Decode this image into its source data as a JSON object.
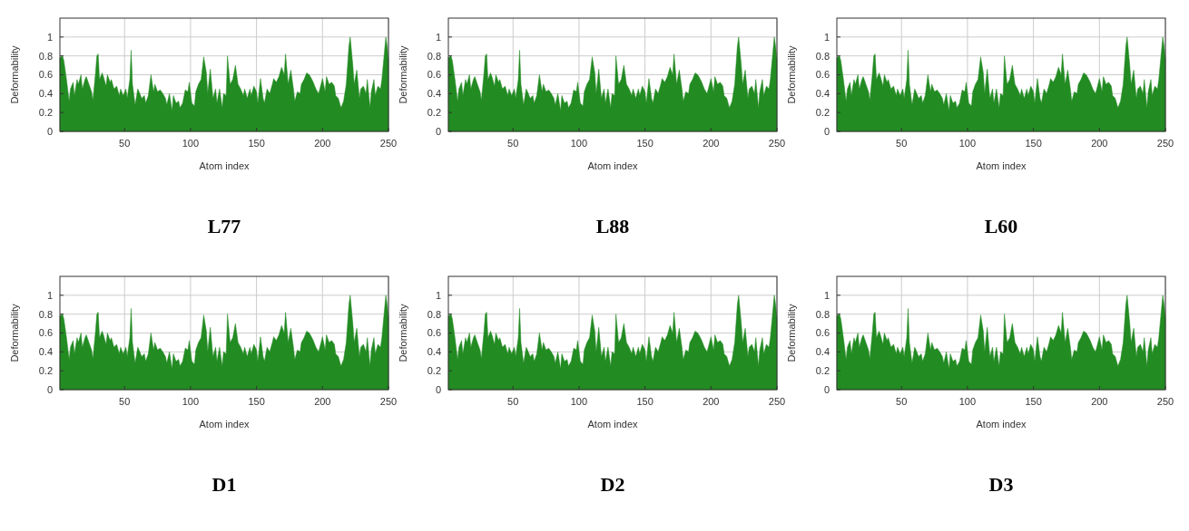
{
  "chart_data": [
    {
      "type": "area",
      "title": "L77",
      "xlabel": "Atom index",
      "ylabel": "Deformability",
      "xlim": [
        1,
        250
      ],
      "ylim": [
        0,
        1.2
      ],
      "xticks": [
        50,
        100,
        150,
        200,
        250
      ],
      "yticks": [
        0,
        0.2,
        0.4,
        0.6,
        0.8,
        1
      ],
      "grid": true,
      "series": [
        {
          "color": "#228b22",
          "x": [
            1,
            3,
            4,
            6,
            8,
            9,
            11,
            12,
            14,
            15,
            17,
            18,
            20,
            21,
            23,
            25,
            26,
            28,
            29,
            30,
            31,
            33,
            34,
            36,
            37,
            39,
            40,
            42,
            44,
            46,
            47,
            49,
            51,
            52,
            54,
            55,
            56,
            58,
            60,
            61,
            63,
            65,
            66,
            68,
            70,
            72,
            73,
            75,
            77,
            79,
            81,
            82,
            84,
            86,
            87,
            89,
            91,
            92,
            94,
            96,
            98,
            99,
            101,
            103,
            104,
            106,
            108,
            110,
            112,
            113,
            115,
            117,
            119,
            120,
            122,
            124,
            125,
            127,
            128,
            130,
            132,
            134,
            136,
            138,
            140,
            141,
            143,
            145,
            146,
            148,
            150,
            151,
            153,
            155,
            156,
            158,
            160,
            162,
            163,
            165,
            167,
            169,
            171,
            172,
            174,
            176,
            178,
            179,
            181,
            183,
            184,
            186,
            188,
            190,
            192,
            193,
            195,
            197,
            198,
            200,
            202,
            203,
            205,
            207,
            209,
            210,
            212,
            214,
            216,
            218,
            220,
            221,
            223,
            224,
            226,
            228,
            229,
            231,
            233,
            234,
            236,
            237,
            239,
            240,
            242,
            244,
            245,
            247,
            248,
            249,
            250
          ],
          "values": [
            0.78,
            0.8,
            0.75,
            0.55,
            0.32,
            0.45,
            0.52,
            0.38,
            0.55,
            0.5,
            0.6,
            0.45,
            0.55,
            0.58,
            0.5,
            0.42,
            0.33,
            0.62,
            0.8,
            0.82,
            0.55,
            0.62,
            0.58,
            0.48,
            0.6,
            0.52,
            0.55,
            0.45,
            0.48,
            0.38,
            0.45,
            0.38,
            0.45,
            0.35,
            0.55,
            0.86,
            0.5,
            0.28,
            0.45,
            0.42,
            0.35,
            0.38,
            0.3,
            0.38,
            0.6,
            0.42,
            0.5,
            0.42,
            0.44,
            0.4,
            0.35,
            0.28,
            0.4,
            0.22,
            0.38,
            0.3,
            0.32,
            0.25,
            0.3,
            0.44,
            0.42,
            0.52,
            0.3,
            0.27,
            0.42,
            0.5,
            0.55,
            0.79,
            0.62,
            0.4,
            0.66,
            0.35,
            0.45,
            0.3,
            0.45,
            0.25,
            0.4,
            0.38,
            0.8,
            0.5,
            0.55,
            0.7,
            0.5,
            0.45,
            0.38,
            0.45,
            0.35,
            0.45,
            0.38,
            0.48,
            0.42,
            0.3,
            0.56,
            0.35,
            0.3,
            0.45,
            0.4,
            0.5,
            0.56,
            0.52,
            0.58,
            0.68,
            0.6,
            0.82,
            0.5,
            0.65,
            0.45,
            0.32,
            0.42,
            0.4,
            0.5,
            0.55,
            0.62,
            0.6,
            0.55,
            0.52,
            0.45,
            0.4,
            0.45,
            0.56,
            0.42,
            0.58,
            0.5,
            0.52,
            0.48,
            0.38,
            0.35,
            0.25,
            0.32,
            0.5,
            0.9,
            1.0,
            0.7,
            0.5,
            0.65,
            0.35,
            0.45,
            0.48,
            0.4,
            0.55,
            0.25,
            0.42,
            0.55,
            0.38,
            0.48,
            0.45,
            0.55,
            0.85,
            1.0,
            0.9,
            0.76
          ]
        }
      ]
    },
    {
      "type": "area",
      "title": "L88",
      "xlabel": "Atom index",
      "ylabel": "Deformability",
      "xlim": [
        1,
        250
      ],
      "ylim": [
        0,
        1.2
      ],
      "xticks": [
        50,
        100,
        150,
        200,
        250
      ],
      "yticks": [
        0,
        0.2,
        0.4,
        0.6,
        0.8,
        1
      ],
      "grid": true,
      "series": [
        {
          "color": "#228b22",
          "x": [
            1,
            3,
            4,
            6,
            8,
            9,
            11,
            12,
            14,
            15,
            17,
            18,
            20,
            21,
            23,
            25,
            26,
            28,
            29,
            30,
            31,
            33,
            34,
            36,
            37,
            39,
            40,
            42,
            44,
            46,
            47,
            49,
            51,
            52,
            54,
            55,
            56,
            58,
            60,
            61,
            63,
            65,
            66,
            68,
            70,
            72,
            73,
            75,
            77,
            79,
            81,
            82,
            84,
            86,
            87,
            89,
            91,
            92,
            94,
            96,
            98,
            99,
            101,
            103,
            104,
            106,
            108,
            110,
            112,
            113,
            115,
            117,
            119,
            120,
            122,
            124,
            125,
            127,
            128,
            130,
            132,
            134,
            136,
            138,
            140,
            141,
            143,
            145,
            146,
            148,
            150,
            151,
            153,
            155,
            156,
            158,
            160,
            162,
            163,
            165,
            167,
            169,
            171,
            172,
            174,
            176,
            178,
            179,
            181,
            183,
            184,
            186,
            188,
            190,
            192,
            193,
            195,
            197,
            198,
            200,
            202,
            203,
            205,
            207,
            209,
            210,
            212,
            214,
            216,
            218,
            220,
            221,
            223,
            224,
            226,
            228,
            229,
            231,
            233,
            234,
            236,
            237,
            239,
            240,
            242,
            244,
            245,
            247,
            248,
            249,
            250
          ],
          "values": [
            0.78,
            0.8,
            0.75,
            0.55,
            0.32,
            0.45,
            0.52,
            0.38,
            0.55,
            0.5,
            0.6,
            0.45,
            0.55,
            0.58,
            0.5,
            0.42,
            0.33,
            0.62,
            0.8,
            0.82,
            0.55,
            0.62,
            0.58,
            0.48,
            0.6,
            0.52,
            0.55,
            0.45,
            0.48,
            0.38,
            0.45,
            0.38,
            0.45,
            0.35,
            0.55,
            0.86,
            0.5,
            0.28,
            0.45,
            0.42,
            0.35,
            0.38,
            0.3,
            0.38,
            0.6,
            0.42,
            0.5,
            0.42,
            0.44,
            0.4,
            0.35,
            0.28,
            0.4,
            0.22,
            0.38,
            0.3,
            0.32,
            0.25,
            0.3,
            0.44,
            0.42,
            0.52,
            0.3,
            0.27,
            0.42,
            0.5,
            0.55,
            0.79,
            0.62,
            0.4,
            0.66,
            0.35,
            0.45,
            0.3,
            0.45,
            0.25,
            0.4,
            0.38,
            0.8,
            0.5,
            0.55,
            0.7,
            0.5,
            0.45,
            0.38,
            0.45,
            0.35,
            0.45,
            0.38,
            0.48,
            0.42,
            0.3,
            0.56,
            0.35,
            0.3,
            0.45,
            0.4,
            0.5,
            0.56,
            0.52,
            0.58,
            0.68,
            0.6,
            0.82,
            0.5,
            0.65,
            0.45,
            0.32,
            0.42,
            0.4,
            0.5,
            0.55,
            0.62,
            0.6,
            0.55,
            0.52,
            0.45,
            0.4,
            0.45,
            0.56,
            0.42,
            0.58,
            0.5,
            0.52,
            0.48,
            0.38,
            0.35,
            0.25,
            0.32,
            0.5,
            0.9,
            1.0,
            0.7,
            0.5,
            0.65,
            0.35,
            0.45,
            0.48,
            0.4,
            0.55,
            0.25,
            0.42,
            0.55,
            0.38,
            0.48,
            0.45,
            0.55,
            0.85,
            1.0,
            0.9,
            0.76
          ]
        }
      ]
    },
    {
      "type": "area",
      "title": "L60",
      "xlabel": "Atom index",
      "ylabel": "Deformability",
      "xlim": [
        1,
        250
      ],
      "ylim": [
        0,
        1.2
      ],
      "xticks": [
        50,
        100,
        150,
        200,
        250
      ],
      "yticks": [
        0,
        0.2,
        0.4,
        0.6,
        0.8,
        1
      ],
      "grid": true,
      "series": [
        {
          "color": "#228b22",
          "x": [
            1,
            3,
            4,
            6,
            8,
            9,
            11,
            12,
            14,
            15,
            17,
            18,
            20,
            21,
            23,
            25,
            26,
            28,
            29,
            30,
            31,
            33,
            34,
            36,
            37,
            39,
            40,
            42,
            44,
            46,
            47,
            49,
            51,
            52,
            54,
            55,
            56,
            58,
            60,
            61,
            63,
            65,
            66,
            68,
            70,
            72,
            73,
            75,
            77,
            79,
            81,
            82,
            84,
            86,
            87,
            89,
            91,
            92,
            94,
            96,
            98,
            99,
            101,
            103,
            104,
            106,
            108,
            110,
            112,
            113,
            115,
            117,
            119,
            120,
            122,
            124,
            125,
            127,
            128,
            130,
            132,
            134,
            136,
            138,
            140,
            141,
            143,
            145,
            146,
            148,
            150,
            151,
            153,
            155,
            156,
            158,
            160,
            162,
            163,
            165,
            167,
            169,
            171,
            172,
            174,
            176,
            178,
            179,
            181,
            183,
            184,
            186,
            188,
            190,
            192,
            193,
            195,
            197,
            198,
            200,
            202,
            203,
            205,
            207,
            209,
            210,
            212,
            214,
            216,
            218,
            220,
            221,
            223,
            224,
            226,
            228,
            229,
            231,
            233,
            234,
            236,
            237,
            239,
            240,
            242,
            244,
            245,
            247,
            248,
            249,
            250
          ],
          "values": [
            0.78,
            0.8,
            0.75,
            0.55,
            0.32,
            0.45,
            0.52,
            0.38,
            0.55,
            0.5,
            0.6,
            0.45,
            0.55,
            0.58,
            0.5,
            0.42,
            0.33,
            0.62,
            0.8,
            0.82,
            0.55,
            0.62,
            0.58,
            0.48,
            0.6,
            0.52,
            0.55,
            0.45,
            0.48,
            0.38,
            0.45,
            0.38,
            0.45,
            0.35,
            0.55,
            0.86,
            0.5,
            0.28,
            0.45,
            0.42,
            0.35,
            0.38,
            0.3,
            0.38,
            0.6,
            0.42,
            0.5,
            0.42,
            0.44,
            0.4,
            0.35,
            0.28,
            0.4,
            0.22,
            0.38,
            0.3,
            0.32,
            0.25,
            0.3,
            0.44,
            0.42,
            0.52,
            0.3,
            0.27,
            0.42,
            0.5,
            0.55,
            0.79,
            0.62,
            0.4,
            0.66,
            0.35,
            0.45,
            0.3,
            0.45,
            0.25,
            0.4,
            0.38,
            0.8,
            0.5,
            0.55,
            0.7,
            0.5,
            0.45,
            0.38,
            0.45,
            0.35,
            0.45,
            0.38,
            0.48,
            0.42,
            0.3,
            0.56,
            0.35,
            0.3,
            0.45,
            0.4,
            0.5,
            0.56,
            0.52,
            0.58,
            0.68,
            0.6,
            0.82,
            0.5,
            0.65,
            0.45,
            0.32,
            0.42,
            0.4,
            0.5,
            0.55,
            0.62,
            0.6,
            0.55,
            0.52,
            0.45,
            0.4,
            0.45,
            0.56,
            0.42,
            0.58,
            0.5,
            0.52,
            0.48,
            0.38,
            0.35,
            0.25,
            0.32,
            0.5,
            0.9,
            1.0,
            0.7,
            0.5,
            0.65,
            0.35,
            0.45,
            0.48,
            0.4,
            0.55,
            0.25,
            0.42,
            0.55,
            0.38,
            0.48,
            0.45,
            0.55,
            0.85,
            1.0,
            0.9,
            0.76
          ]
        }
      ]
    },
    {
      "type": "area",
      "title": "D1",
      "xlabel": "Atom index",
      "ylabel": "Deformability",
      "xlim": [
        1,
        250
      ],
      "ylim": [
        0,
        1.2
      ],
      "xticks": [
        50,
        100,
        150,
        200,
        250
      ],
      "yticks": [
        0,
        0.2,
        0.4,
        0.6,
        0.8,
        1
      ],
      "grid": true,
      "series": [
        {
          "color": "#228b22",
          "x": [
            1,
            3,
            4,
            6,
            8,
            9,
            11,
            12,
            14,
            15,
            17,
            18,
            20,
            21,
            23,
            25,
            26,
            28,
            29,
            30,
            31,
            33,
            34,
            36,
            37,
            39,
            40,
            42,
            44,
            46,
            47,
            49,
            51,
            52,
            54,
            55,
            56,
            58,
            60,
            61,
            63,
            65,
            66,
            68,
            70,
            72,
            73,
            75,
            77,
            79,
            81,
            82,
            84,
            86,
            87,
            89,
            91,
            92,
            94,
            96,
            98,
            99,
            101,
            103,
            104,
            106,
            108,
            110,
            112,
            113,
            115,
            117,
            119,
            120,
            122,
            124,
            125,
            127,
            128,
            130,
            132,
            134,
            136,
            138,
            140,
            141,
            143,
            145,
            146,
            148,
            150,
            151,
            153,
            155,
            156,
            158,
            160,
            162,
            163,
            165,
            167,
            169,
            171,
            172,
            174,
            176,
            178,
            179,
            181,
            183,
            184,
            186,
            188,
            190,
            192,
            193,
            195,
            197,
            198,
            200,
            202,
            203,
            205,
            207,
            209,
            210,
            212,
            214,
            216,
            218,
            220,
            221,
            223,
            224,
            226,
            228,
            229,
            231,
            233,
            234,
            236,
            237,
            239,
            240,
            242,
            244,
            245,
            247,
            248,
            249,
            250
          ],
          "values": [
            0.78,
            0.8,
            0.75,
            0.55,
            0.32,
            0.45,
            0.52,
            0.38,
            0.55,
            0.5,
            0.6,
            0.45,
            0.55,
            0.58,
            0.5,
            0.42,
            0.33,
            0.62,
            0.8,
            0.82,
            0.55,
            0.62,
            0.58,
            0.48,
            0.6,
            0.52,
            0.55,
            0.45,
            0.48,
            0.38,
            0.45,
            0.38,
            0.45,
            0.35,
            0.55,
            0.86,
            0.5,
            0.28,
            0.45,
            0.42,
            0.35,
            0.38,
            0.3,
            0.38,
            0.6,
            0.42,
            0.5,
            0.42,
            0.44,
            0.4,
            0.35,
            0.28,
            0.4,
            0.22,
            0.38,
            0.3,
            0.32,
            0.25,
            0.3,
            0.44,
            0.42,
            0.52,
            0.3,
            0.27,
            0.42,
            0.5,
            0.55,
            0.79,
            0.62,
            0.4,
            0.66,
            0.35,
            0.45,
            0.3,
            0.45,
            0.25,
            0.4,
            0.38,
            0.8,
            0.5,
            0.55,
            0.7,
            0.5,
            0.45,
            0.38,
            0.45,
            0.35,
            0.45,
            0.38,
            0.48,
            0.42,
            0.3,
            0.56,
            0.35,
            0.3,
            0.45,
            0.4,
            0.5,
            0.56,
            0.52,
            0.58,
            0.68,
            0.6,
            0.82,
            0.5,
            0.65,
            0.45,
            0.32,
            0.42,
            0.4,
            0.5,
            0.55,
            0.62,
            0.6,
            0.55,
            0.52,
            0.45,
            0.4,
            0.45,
            0.56,
            0.42,
            0.58,
            0.5,
            0.52,
            0.48,
            0.38,
            0.35,
            0.25,
            0.32,
            0.5,
            0.9,
            1.0,
            0.7,
            0.5,
            0.65,
            0.35,
            0.45,
            0.48,
            0.4,
            0.55,
            0.25,
            0.42,
            0.55,
            0.38,
            0.48,
            0.45,
            0.55,
            0.85,
            1.0,
            0.9,
            0.76
          ]
        }
      ]
    },
    {
      "type": "area",
      "title": "D2",
      "xlabel": "Atom index",
      "ylabel": "Deformability",
      "xlim": [
        1,
        250
      ],
      "ylim": [
        0,
        1.2
      ],
      "xticks": [
        50,
        100,
        150,
        200,
        250
      ],
      "yticks": [
        0,
        0.2,
        0.4,
        0.6,
        0.8,
        1
      ],
      "grid": true,
      "series": [
        {
          "color": "#228b22",
          "x": [
            1,
            3,
            4,
            6,
            8,
            9,
            11,
            12,
            14,
            15,
            17,
            18,
            20,
            21,
            23,
            25,
            26,
            28,
            29,
            30,
            31,
            33,
            34,
            36,
            37,
            39,
            40,
            42,
            44,
            46,
            47,
            49,
            51,
            52,
            54,
            55,
            56,
            58,
            60,
            61,
            63,
            65,
            66,
            68,
            70,
            72,
            73,
            75,
            77,
            79,
            81,
            82,
            84,
            86,
            87,
            89,
            91,
            92,
            94,
            96,
            98,
            99,
            101,
            103,
            104,
            106,
            108,
            110,
            112,
            113,
            115,
            117,
            119,
            120,
            122,
            124,
            125,
            127,
            128,
            130,
            132,
            134,
            136,
            138,
            140,
            141,
            143,
            145,
            146,
            148,
            150,
            151,
            153,
            155,
            156,
            158,
            160,
            162,
            163,
            165,
            167,
            169,
            171,
            172,
            174,
            176,
            178,
            179,
            181,
            183,
            184,
            186,
            188,
            190,
            192,
            193,
            195,
            197,
            198,
            200,
            202,
            203,
            205,
            207,
            209,
            210,
            212,
            214,
            216,
            218,
            220,
            221,
            223,
            224,
            226,
            228,
            229,
            231,
            233,
            234,
            236,
            237,
            239,
            240,
            242,
            244,
            245,
            247,
            248,
            249,
            250
          ],
          "values": [
            0.78,
            0.8,
            0.75,
            0.55,
            0.32,
            0.45,
            0.52,
            0.38,
            0.55,
            0.5,
            0.6,
            0.45,
            0.55,
            0.58,
            0.5,
            0.42,
            0.33,
            0.62,
            0.8,
            0.82,
            0.55,
            0.62,
            0.58,
            0.48,
            0.6,
            0.52,
            0.55,
            0.45,
            0.48,
            0.38,
            0.45,
            0.38,
            0.45,
            0.35,
            0.55,
            0.86,
            0.5,
            0.28,
            0.45,
            0.42,
            0.35,
            0.38,
            0.3,
            0.38,
            0.6,
            0.42,
            0.5,
            0.42,
            0.44,
            0.4,
            0.35,
            0.28,
            0.4,
            0.22,
            0.38,
            0.3,
            0.32,
            0.25,
            0.3,
            0.44,
            0.42,
            0.52,
            0.3,
            0.27,
            0.42,
            0.5,
            0.55,
            0.79,
            0.62,
            0.4,
            0.66,
            0.35,
            0.45,
            0.3,
            0.45,
            0.25,
            0.4,
            0.38,
            0.8,
            0.5,
            0.55,
            0.7,
            0.5,
            0.45,
            0.38,
            0.45,
            0.35,
            0.45,
            0.38,
            0.48,
            0.42,
            0.3,
            0.56,
            0.35,
            0.3,
            0.45,
            0.4,
            0.5,
            0.56,
            0.52,
            0.58,
            0.68,
            0.6,
            0.82,
            0.5,
            0.65,
            0.45,
            0.32,
            0.42,
            0.4,
            0.5,
            0.55,
            0.62,
            0.6,
            0.55,
            0.52,
            0.45,
            0.4,
            0.45,
            0.56,
            0.42,
            0.58,
            0.5,
            0.52,
            0.48,
            0.38,
            0.35,
            0.25,
            0.32,
            0.5,
            0.9,
            1.0,
            0.7,
            0.5,
            0.65,
            0.35,
            0.45,
            0.48,
            0.4,
            0.55,
            0.25,
            0.42,
            0.55,
            0.38,
            0.48,
            0.45,
            0.55,
            0.85,
            1.0,
            0.9,
            0.76
          ]
        }
      ]
    },
    {
      "type": "area",
      "title": "D3",
      "xlabel": "Atom index",
      "ylabel": "Deformability",
      "xlim": [
        1,
        250
      ],
      "ylim": [
        0,
        1.2
      ],
      "xticks": [
        50,
        100,
        150,
        200,
        250
      ],
      "yticks": [
        0,
        0.2,
        0.4,
        0.6,
        0.8,
        1
      ],
      "grid": true,
      "series": [
        {
          "color": "#228b22",
          "x": [
            1,
            3,
            4,
            6,
            8,
            9,
            11,
            12,
            14,
            15,
            17,
            18,
            20,
            21,
            23,
            25,
            26,
            28,
            29,
            30,
            31,
            33,
            34,
            36,
            37,
            39,
            40,
            42,
            44,
            46,
            47,
            49,
            51,
            52,
            54,
            55,
            56,
            58,
            60,
            61,
            63,
            65,
            66,
            68,
            70,
            72,
            73,
            75,
            77,
            79,
            81,
            82,
            84,
            86,
            87,
            89,
            91,
            92,
            94,
            96,
            98,
            99,
            101,
            103,
            104,
            106,
            108,
            110,
            112,
            113,
            115,
            117,
            119,
            120,
            122,
            124,
            125,
            127,
            128,
            130,
            132,
            134,
            136,
            138,
            140,
            141,
            143,
            145,
            146,
            148,
            150,
            151,
            153,
            155,
            156,
            158,
            160,
            162,
            163,
            165,
            167,
            169,
            171,
            172,
            174,
            176,
            178,
            179,
            181,
            183,
            184,
            186,
            188,
            190,
            192,
            193,
            195,
            197,
            198,
            200,
            202,
            203,
            205,
            207,
            209,
            210,
            212,
            214,
            216,
            218,
            220,
            221,
            223,
            224,
            226,
            228,
            229,
            231,
            233,
            234,
            236,
            237,
            239,
            240,
            242,
            244,
            245,
            247,
            248,
            249,
            250
          ],
          "values": [
            0.78,
            0.8,
            0.75,
            0.55,
            0.32,
            0.45,
            0.52,
            0.38,
            0.55,
            0.5,
            0.6,
            0.45,
            0.55,
            0.58,
            0.5,
            0.42,
            0.33,
            0.62,
            0.8,
            0.82,
            0.55,
            0.62,
            0.58,
            0.48,
            0.6,
            0.52,
            0.55,
            0.45,
            0.48,
            0.38,
            0.45,
            0.38,
            0.45,
            0.35,
            0.55,
            0.86,
            0.5,
            0.28,
            0.45,
            0.42,
            0.35,
            0.38,
            0.3,
            0.38,
            0.6,
            0.42,
            0.5,
            0.42,
            0.44,
            0.4,
            0.35,
            0.28,
            0.4,
            0.22,
            0.38,
            0.3,
            0.32,
            0.25,
            0.3,
            0.44,
            0.42,
            0.52,
            0.3,
            0.27,
            0.42,
            0.5,
            0.55,
            0.79,
            0.62,
            0.4,
            0.66,
            0.35,
            0.45,
            0.3,
            0.45,
            0.25,
            0.4,
            0.38,
            0.8,
            0.5,
            0.55,
            0.7,
            0.5,
            0.45,
            0.38,
            0.45,
            0.35,
            0.45,
            0.38,
            0.48,
            0.42,
            0.3,
            0.56,
            0.35,
            0.3,
            0.45,
            0.4,
            0.5,
            0.56,
            0.52,
            0.58,
            0.68,
            0.6,
            0.82,
            0.5,
            0.65,
            0.45,
            0.32,
            0.42,
            0.4,
            0.5,
            0.55,
            0.62,
            0.6,
            0.55,
            0.52,
            0.45,
            0.4,
            0.45,
            0.56,
            0.42,
            0.58,
            0.5,
            0.52,
            0.48,
            0.38,
            0.35,
            0.25,
            0.32,
            0.5,
            0.9,
            1.0,
            0.7,
            0.5,
            0.65,
            0.35,
            0.45,
            0.48,
            0.4,
            0.55,
            0.25,
            0.42,
            0.55,
            0.38,
            0.48,
            0.45,
            0.55,
            0.85,
            1.0,
            0.9,
            0.76
          ]
        }
      ]
    }
  ]
}
